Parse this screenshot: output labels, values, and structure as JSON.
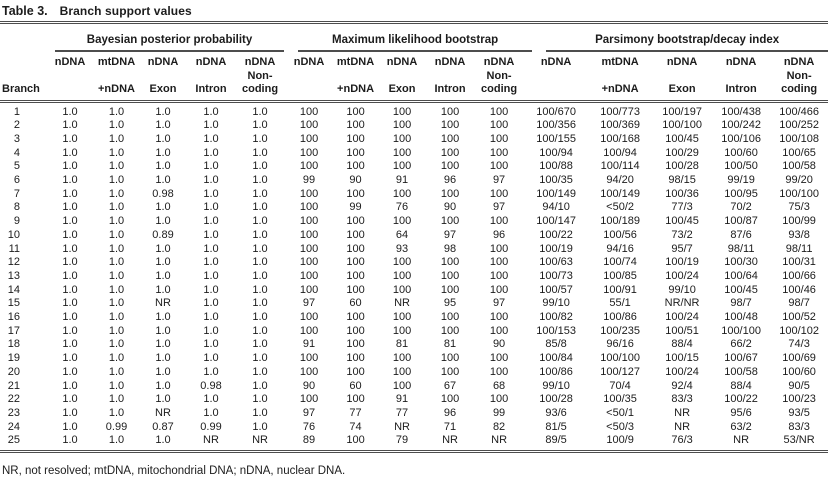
{
  "title": {
    "label": "Table 3.",
    "caption": "Branch support values"
  },
  "branch_header": "Branch",
  "footnote": "NR, not resolved; mtDNA, mitochondrial DNA; nDNA, nuclear DNA.",
  "rule_color": "#4d4d4d",
  "text_color": "#1c1c1c",
  "groups": [
    {
      "key": "bayesian",
      "label": "Bayesian posterior probability",
      "columns": [
        [
          "nDNA",
          "",
          ""
        ],
        [
          "mtDNA",
          "",
          "+nDNA"
        ],
        [
          "nDNA",
          "",
          "Exon"
        ],
        [
          "nDNA",
          "",
          "Intron"
        ],
        [
          "nDNA",
          "Non-",
          "coding"
        ]
      ]
    },
    {
      "key": "ml",
      "label": "Maximum likelihood bootstrap",
      "columns": [
        [
          "nDNA",
          "",
          ""
        ],
        [
          "mtDNA",
          "",
          "+nDNA"
        ],
        [
          "nDNA",
          "",
          "Exon"
        ],
        [
          "nDNA",
          "",
          "Intron"
        ],
        [
          "nDNA",
          "Non-",
          "coding"
        ]
      ]
    },
    {
      "key": "parsimony",
      "label": "Parsimony bootstrap/decay index",
      "columns": [
        [
          "nDNA",
          "",
          ""
        ],
        [
          "mtDNA",
          "",
          "+nDNA"
        ],
        [
          "nDNA",
          "",
          "Exon"
        ],
        [
          "nDNA",
          "",
          "Intron"
        ],
        [
          "nDNA",
          "Non-",
          "coding"
        ]
      ]
    }
  ],
  "rows": [
    {
      "branch": "1",
      "bayesian": [
        "1.0",
        "1.0",
        "1.0",
        "1.0",
        "1.0"
      ],
      "ml": [
        "100",
        "100",
        "100",
        "100",
        "100"
      ],
      "parsimony": [
        "100/670",
        "100/773",
        "100/197",
        "100/438",
        "100/466"
      ]
    },
    {
      "branch": "2",
      "bayesian": [
        "1.0",
        "1.0",
        "1.0",
        "1.0",
        "1.0"
      ],
      "ml": [
        "100",
        "100",
        "100",
        "100",
        "100"
      ],
      "parsimony": [
        "100/356",
        "100/369",
        "100/100",
        "100/242",
        "100/252"
      ]
    },
    {
      "branch": "3",
      "bayesian": [
        "1.0",
        "1.0",
        "1.0",
        "1.0",
        "1.0"
      ],
      "ml": [
        "100",
        "100",
        "100",
        "100",
        "100"
      ],
      "parsimony": [
        "100/155",
        "100/168",
        "100/45",
        "100/106",
        "100/108"
      ]
    },
    {
      "branch": "4",
      "bayesian": [
        "1.0",
        "1.0",
        "1.0",
        "1.0",
        "1.0"
      ],
      "ml": [
        "100",
        "100",
        "100",
        "100",
        "100"
      ],
      "parsimony": [
        "100/94",
        "100/94",
        "100/29",
        "100/60",
        "100/65"
      ]
    },
    {
      "branch": "5",
      "bayesian": [
        "1.0",
        "1.0",
        "1.0",
        "1.0",
        "1.0"
      ],
      "ml": [
        "100",
        "100",
        "100",
        "100",
        "100"
      ],
      "parsimony": [
        "100/88",
        "100/114",
        "100/28",
        "100/50",
        "100/58"
      ]
    },
    {
      "branch": "6",
      "bayesian": [
        "1.0",
        "1.0",
        "1.0",
        "1.0",
        "1.0"
      ],
      "ml": [
        "99",
        "90",
        "91",
        "96",
        "97"
      ],
      "parsimony": [
        "100/35",
        "94/20",
        "98/15",
        "99/19",
        "99/20"
      ]
    },
    {
      "branch": "7",
      "bayesian": [
        "1.0",
        "1.0",
        "0.98",
        "1.0",
        "1.0"
      ],
      "ml": [
        "100",
        "100",
        "100",
        "100",
        "100"
      ],
      "parsimony": [
        "100/149",
        "100/149",
        "100/36",
        "100/95",
        "100/100"
      ]
    },
    {
      "branch": "8",
      "bayesian": [
        "1.0",
        "1.0",
        "1.0",
        "1.0",
        "1.0"
      ],
      "ml": [
        "100",
        "99",
        "76",
        "90",
        "97"
      ],
      "parsimony": [
        "94/10",
        "<50/2",
        "77/3",
        "70/2",
        "75/3"
      ]
    },
    {
      "branch": "9",
      "bayesian": [
        "1.0",
        "1.0",
        "1.0",
        "1.0",
        "1.0"
      ],
      "ml": [
        "100",
        "100",
        "100",
        "100",
        "100"
      ],
      "parsimony": [
        "100/147",
        "100/189",
        "100/45",
        "100/87",
        "100/99"
      ]
    },
    {
      "branch": "10",
      "bayesian": [
        "1.0",
        "1.0",
        "0.89",
        "1.0",
        "1.0"
      ],
      "ml": [
        "100",
        "100",
        "64",
        "97",
        "96"
      ],
      "parsimony": [
        "100/22",
        "100/56",
        "73/2",
        "87/6",
        "93/8"
      ]
    },
    {
      "branch": "11",
      "bayesian": [
        "1.0",
        "1.0",
        "1.0",
        "1.0",
        "1.0"
      ],
      "ml": [
        "100",
        "100",
        "93",
        "98",
        "100"
      ],
      "parsimony": [
        "100/19",
        "94/16",
        "95/7",
        "98/11",
        "98/11"
      ]
    },
    {
      "branch": "12",
      "bayesian": [
        "1.0",
        "1.0",
        "1.0",
        "1.0",
        "1.0"
      ],
      "ml": [
        "100",
        "100",
        "100",
        "100",
        "100"
      ],
      "parsimony": [
        "100/63",
        "100/74",
        "100/19",
        "100/30",
        "100/31"
      ]
    },
    {
      "branch": "13",
      "bayesian": [
        "1.0",
        "1.0",
        "1.0",
        "1.0",
        "1.0"
      ],
      "ml": [
        "100",
        "100",
        "100",
        "100",
        "100"
      ],
      "parsimony": [
        "100/73",
        "100/85",
        "100/24",
        "100/64",
        "100/66"
      ]
    },
    {
      "branch": "14",
      "bayesian": [
        "1.0",
        "1.0",
        "1.0",
        "1.0",
        "1.0"
      ],
      "ml": [
        "100",
        "100",
        "100",
        "100",
        "100"
      ],
      "parsimony": [
        "100/57",
        "100/91",
        "99/10",
        "100/45",
        "100/46"
      ]
    },
    {
      "branch": "15",
      "bayesian": [
        "1.0",
        "1.0",
        "NR",
        "1.0",
        "1.0"
      ],
      "ml": [
        "97",
        "60",
        "NR",
        "95",
        "97"
      ],
      "parsimony": [
        "99/10",
        "55/1",
        "NR/NR",
        "98/7",
        "98/7"
      ]
    },
    {
      "branch": "16",
      "bayesian": [
        "1.0",
        "1.0",
        "1.0",
        "1.0",
        "1.0"
      ],
      "ml": [
        "100",
        "100",
        "100",
        "100",
        "100"
      ],
      "parsimony": [
        "100/82",
        "100/86",
        "100/24",
        "100/48",
        "100/52"
      ]
    },
    {
      "branch": "17",
      "bayesian": [
        "1.0",
        "1.0",
        "1.0",
        "1.0",
        "1.0"
      ],
      "ml": [
        "100",
        "100",
        "100",
        "100",
        "100"
      ],
      "parsimony": [
        "100/153",
        "100/235",
        "100/51",
        "100/100",
        "100/102"
      ]
    },
    {
      "branch": "18",
      "bayesian": [
        "1.0",
        "1.0",
        "1.0",
        "1.0",
        "1.0"
      ],
      "ml": [
        "91",
        "100",
        "81",
        "81",
        "90"
      ],
      "parsimony": [
        "85/8",
        "96/16",
        "88/4",
        "66/2",
        "74/3"
      ]
    },
    {
      "branch": "19",
      "bayesian": [
        "1.0",
        "1.0",
        "1.0",
        "1.0",
        "1.0"
      ],
      "ml": [
        "100",
        "100",
        "100",
        "100",
        "100"
      ],
      "parsimony": [
        "100/84",
        "100/100",
        "100/15",
        "100/67",
        "100/69"
      ]
    },
    {
      "branch": "20",
      "bayesian": [
        "1.0",
        "1.0",
        "1.0",
        "1.0",
        "1.0"
      ],
      "ml": [
        "100",
        "100",
        "100",
        "100",
        "100"
      ],
      "parsimony": [
        "100/86",
        "100/127",
        "100/24",
        "100/58",
        "100/60"
      ]
    },
    {
      "branch": "21",
      "bayesian": [
        "1.0",
        "1.0",
        "1.0",
        "0.98",
        "1.0"
      ],
      "ml": [
        "90",
        "60",
        "100",
        "67",
        "68"
      ],
      "parsimony": [
        "99/10",
        "70/4",
        "92/4",
        "88/4",
        "90/5"
      ]
    },
    {
      "branch": "22",
      "bayesian": [
        "1.0",
        "1.0",
        "1.0",
        "1.0",
        "1.0"
      ],
      "ml": [
        "100",
        "100",
        "91",
        "100",
        "100"
      ],
      "parsimony": [
        "100/28",
        "100/35",
        "83/3",
        "100/22",
        "100/23"
      ]
    },
    {
      "branch": "23",
      "bayesian": [
        "1.0",
        "1.0",
        "NR",
        "1.0",
        "1.0"
      ],
      "ml": [
        "97",
        "77",
        "77",
        "96",
        "99"
      ],
      "parsimony": [
        "93/6",
        "<50/1",
        "NR",
        "95/6",
        "93/5"
      ]
    },
    {
      "branch": "24",
      "bayesian": [
        "1.0",
        "0.99",
        "0.87",
        "0.99",
        "1.0"
      ],
      "ml": [
        "76",
        "74",
        "NR",
        "71",
        "82"
      ],
      "parsimony": [
        "81/5",
        "<50/3",
        "NR",
        "63/2",
        "83/3"
      ]
    },
    {
      "branch": "25",
      "bayesian": [
        "1.0",
        "1.0",
        "1.0",
        "NR",
        "NR"
      ],
      "ml": [
        "89",
        "100",
        "79",
        "NR",
        "NR"
      ],
      "parsimony": [
        "89/5",
        "100/9",
        "76/3",
        "NR",
        "53/NR"
      ]
    }
  ]
}
